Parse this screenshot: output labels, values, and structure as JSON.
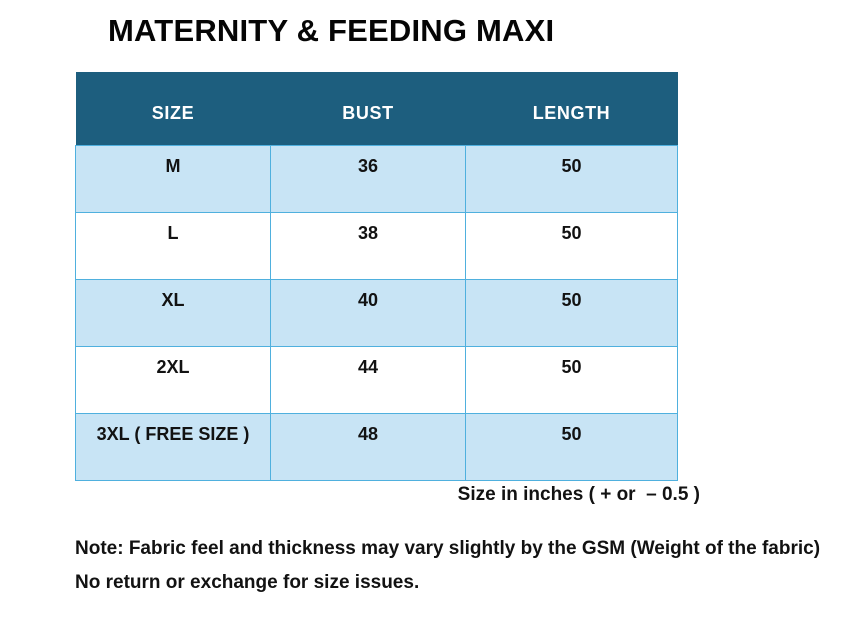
{
  "chart_data": {
    "type": "table",
    "title": "MATERNITY & FEEDING MAXI",
    "columns": [
      "SIZE",
      "BUST",
      "LENGTH"
    ],
    "rows": [
      [
        "M",
        "36",
        "50"
      ],
      [
        "L",
        "38",
        "50"
      ],
      [
        "XL",
        "40",
        "50"
      ],
      [
        "2XL",
        "44",
        "50"
      ],
      [
        "3XL ( FREE SIZE )",
        "48",
        "50"
      ]
    ],
    "caption": "Size in inches ( + or  – 0.5 )",
    "note": "Note: Fabric feel and thickness may vary slightly by the GSM (Weight of the fabric) No return or exchange for size issues.",
    "units": "inches",
    "layout_hints": {
      "header_position": "top",
      "row_striping": "odd-rows-light-blue",
      "cell_text_align": "center"
    }
  },
  "colors": {
    "header_bg": "#1d5e7e",
    "header_text": "#ffffff",
    "row_alt_bg": "#c8e4f5",
    "border": "#4fb0de",
    "text": "#121212",
    "background": "#ffffff"
  }
}
